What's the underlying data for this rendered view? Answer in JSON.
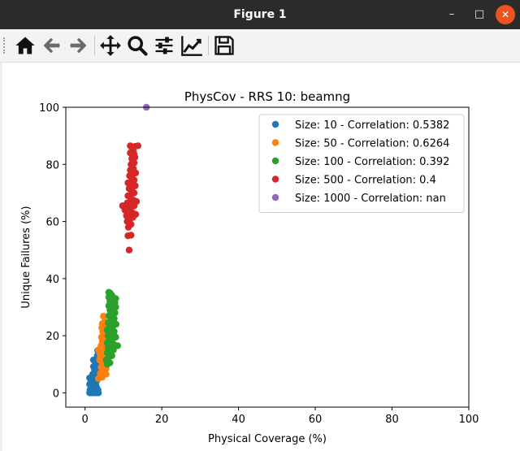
{
  "window": {
    "title": "Figure 1",
    "minimize_glyph": "–",
    "maximize_glyph": "□",
    "close_glyph": "✕"
  },
  "toolbar": {
    "buttons": [
      {
        "name": "home-button",
        "icon": "home-icon"
      },
      {
        "name": "back-button",
        "icon": "arrow-left-icon"
      },
      {
        "name": "forward-button",
        "icon": "arrow-right-icon"
      },
      {
        "name": "pan-button",
        "icon": "move-icon"
      },
      {
        "name": "zoom-button",
        "icon": "magnifier-icon"
      },
      {
        "name": "subplots-button",
        "icon": "sliders-icon"
      },
      {
        "name": "edit-axes-button",
        "icon": "line-chart-icon"
      },
      {
        "name": "save-button",
        "icon": "floppy-disk-icon"
      }
    ]
  },
  "chart_data": {
    "type": "scatter",
    "title": "PhysCov - RRS 10: beamng",
    "xlabel": "Physical Coverage (%)",
    "ylabel": "Unique Failures (%)",
    "xlim": [
      -5,
      100
    ],
    "ylim": [
      -5,
      100
    ],
    "xticks": [
      "0",
      "20",
      "40",
      "60",
      "80",
      "100"
    ],
    "yticks": [
      "0",
      "20",
      "40",
      "60",
      "80",
      "100"
    ],
    "grid": false,
    "legend_position": "top-right",
    "series": [
      {
        "name": "Size: 10 - Correlation: 0.5382",
        "color": "#1f77b4",
        "points": [
          [
            1.2,
            0
          ],
          [
            1.5,
            0
          ],
          [
            2,
            0
          ],
          [
            2.5,
            0
          ],
          [
            3,
            0
          ],
          [
            3.5,
            0
          ],
          [
            1.3,
            1
          ],
          [
            2,
            1
          ],
          [
            2.8,
            1
          ],
          [
            3.4,
            1
          ],
          [
            1.5,
            2.2
          ],
          [
            2.2,
            2.5
          ],
          [
            3,
            2
          ],
          [
            1.2,
            3
          ],
          [
            2,
            3.5
          ],
          [
            2.8,
            3.2
          ],
          [
            1.5,
            4.5
          ],
          [
            2.2,
            4.8
          ],
          [
            3.2,
            4.5
          ],
          [
            1.2,
            5.2
          ],
          [
            2.5,
            5.5
          ],
          [
            3.6,
            5.8
          ],
          [
            2,
            6.5
          ],
          [
            3,
            7
          ],
          [
            4,
            6.8
          ],
          [
            2.5,
            8
          ],
          [
            3.5,
            8.5
          ],
          [
            2.2,
            9.2
          ],
          [
            3.4,
            9.8
          ],
          [
            4.2,
            9.5
          ],
          [
            3,
            11
          ],
          [
            2.2,
            11.5
          ],
          [
            3.8,
            12
          ],
          [
            4.5,
            11.8
          ],
          [
            3.2,
            13
          ],
          [
            4,
            13.5
          ],
          [
            3.3,
            14.8
          ]
        ]
      },
      {
        "name": "Size: 50 - Correlation: 0.6264",
        "color": "#ff7f0e",
        "points": [
          [
            3.5,
            5
          ],
          [
            4.5,
            5.5
          ],
          [
            5.5,
            6.5
          ],
          [
            4,
            6.8
          ],
          [
            4.8,
            7.8
          ],
          [
            5.5,
            8.5
          ],
          [
            4.2,
            9
          ],
          [
            5,
            10
          ],
          [
            4.5,
            10.8
          ],
          [
            3.8,
            11.5
          ],
          [
            5.2,
            11.8
          ],
          [
            4,
            12.5
          ],
          [
            5,
            13
          ],
          [
            3.8,
            14
          ],
          [
            4.8,
            14.5
          ],
          [
            3.5,
            15
          ],
          [
            4.5,
            15.3
          ],
          [
            5.4,
            15.5
          ],
          [
            4.2,
            16.5
          ],
          [
            5,
            17
          ],
          [
            4.5,
            18
          ],
          [
            5.2,
            18.5
          ],
          [
            4.3,
            19.5
          ],
          [
            5,
            20.5
          ],
          [
            4.6,
            21.5
          ],
          [
            4.4,
            22.8
          ],
          [
            5.2,
            23.5
          ],
          [
            4.5,
            24.2
          ],
          [
            5.2,
            25
          ],
          [
            4.8,
            26.8
          ]
        ]
      },
      {
        "name": "Size: 100 - Correlation: 0.392",
        "color": "#2ca02c",
        "points": [
          [
            5.8,
            10
          ],
          [
            6.5,
            10.5
          ],
          [
            5.5,
            11.5
          ],
          [
            6.2,
            12.5
          ],
          [
            7,
            13
          ],
          [
            5.8,
            14
          ],
          [
            6.6,
            14.5
          ],
          [
            7.4,
            15
          ],
          [
            6,
            15.8
          ],
          [
            6.8,
            16.5
          ],
          [
            7.5,
            17
          ],
          [
            8.5,
            16.5
          ],
          [
            5.8,
            17.5
          ],
          [
            6.4,
            18.5
          ],
          [
            7.2,
            19
          ],
          [
            8,
            19.5
          ],
          [
            6,
            20
          ],
          [
            6.8,
            21
          ],
          [
            7.6,
            21.5
          ],
          [
            5.8,
            22
          ],
          [
            6.5,
            23
          ],
          [
            7.3,
            23.5
          ],
          [
            8.1,
            24
          ],
          [
            6,
            24.5
          ],
          [
            6.8,
            25.5
          ],
          [
            7.6,
            26
          ],
          [
            6.2,
            27
          ],
          [
            7,
            27.5
          ],
          [
            7.8,
            28
          ],
          [
            6.5,
            29
          ],
          [
            7.3,
            29.5
          ],
          [
            8,
            30
          ],
          [
            6.2,
            30.5
          ],
          [
            7,
            31
          ],
          [
            7.8,
            31.5
          ],
          [
            6.5,
            32
          ],
          [
            7.2,
            32.5
          ],
          [
            8,
            33
          ],
          [
            6.2,
            33.5
          ],
          [
            7,
            34.2
          ],
          [
            6.5,
            35
          ],
          [
            6.2,
            35.2
          ]
        ]
      },
      {
        "name": "Size: 500 - Correlation: 0.4",
        "color": "#d62728",
        "points": [
          [
            11.5,
            50
          ],
          [
            11.2,
            55
          ],
          [
            12,
            55.2
          ],
          [
            11.3,
            58
          ],
          [
            12,
            59
          ],
          [
            11,
            60
          ],
          [
            11.8,
            61
          ],
          [
            12.5,
            61.5
          ],
          [
            10.8,
            62
          ],
          [
            11.6,
            63
          ],
          [
            12.4,
            63
          ],
          [
            13.2,
            62.5
          ],
          [
            10.4,
            64
          ],
          [
            11.2,
            64.5
          ],
          [
            12,
            65
          ],
          [
            12.8,
            65.5
          ],
          [
            9.8,
            65.5
          ],
          [
            11,
            66.5
          ],
          [
            11.8,
            67
          ],
          [
            12.6,
            67.5
          ],
          [
            13.4,
            67
          ],
          [
            11.2,
            69
          ],
          [
            12,
            69.5
          ],
          [
            12.8,
            70
          ],
          [
            11.5,
            71.5
          ],
          [
            12.3,
            72
          ],
          [
            13.1,
            72.5
          ],
          [
            11.2,
            73.5
          ],
          [
            12,
            74
          ],
          [
            12.8,
            74.5
          ],
          [
            11.6,
            76
          ],
          [
            12.4,
            76.5
          ],
          [
            13.2,
            77
          ],
          [
            11.8,
            78
          ],
          [
            12.6,
            78.5
          ],
          [
            12,
            80
          ],
          [
            12.8,
            80.5
          ],
          [
            12.2,
            82
          ],
          [
            13,
            82.5
          ],
          [
            11.8,
            84
          ],
          [
            12.6,
            84.5
          ],
          [
            12.2,
            86
          ],
          [
            13,
            86.3
          ],
          [
            11.8,
            86.5
          ],
          [
            13.8,
            86.5
          ],
          [
            12.8,
            83.5
          ]
        ]
      },
      {
        "name": "Size: 1000 - Correlation: nan",
        "color": "#9467bd",
        "points": [
          [
            16,
            100
          ]
        ]
      }
    ]
  }
}
